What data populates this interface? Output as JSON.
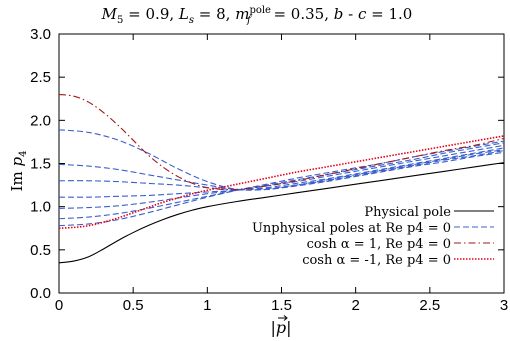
{
  "chart_data": {
    "type": "line",
    "title": "M5 = 0.9, Ls = 8, mfpole = 0.35, b - c = 1.0",
    "title_parts": {
      "m5": "M",
      "m5_sub": "5",
      "m5_val": " = 0.9, ",
      "ls": "L",
      "ls_sub": "s",
      "ls_val": " = 8, ",
      "mf": "m",
      "mf_sup": "pole",
      "mf_sub": "f",
      "mf_val": " = 0.35, ",
      "b": "b",
      "dash": " - ",
      "c": "c",
      "bc_val": " = 1.0"
    },
    "xlabel": "|p|",
    "ylabel": "Im p4",
    "ylabel_parts": {
      "im": "Im ",
      "p": "p",
      "sub": "4"
    },
    "xlim": [
      0,
      3
    ],
    "ylim": [
      0,
      3
    ],
    "x_ticks": [
      "0",
      "0.5",
      "1",
      "1.5",
      "2",
      "2.5",
      "3"
    ],
    "y_ticks": [
      "0.0",
      "0.5",
      "1.0",
      "1.5",
      "2.0",
      "2.5",
      "3.0"
    ],
    "legend_position": "bottom-right",
    "legend": [
      {
        "label": "Physical pole",
        "color": "#000000",
        "dash": "solid"
      },
      {
        "label": "Unphysical poles at Re p4 = 0",
        "color": "#3a5fcd",
        "dash": "dashed"
      },
      {
        "label": "cosh α = 1, Re p4 = 0",
        "color": "#a01818",
        "dash": "dashdot"
      },
      {
        "label": "cosh α = -1, Re p4 = 0",
        "color": "#e8001a",
        "dash": "dotted"
      }
    ],
    "series": [
      {
        "name": "Physical pole",
        "style": "solid",
        "color": "#000000",
        "x": [
          0,
          0.1,
          0.2,
          0.3,
          0.4,
          0.5,
          0.6,
          0.7,
          0.8,
          0.9,
          1.0,
          1.2,
          1.4,
          1.6,
          1.8,
          2.0,
          2.2,
          2.4,
          2.6,
          2.8,
          3.0
        ],
        "y": [
          0.35,
          0.37,
          0.42,
          0.51,
          0.61,
          0.7,
          0.78,
          0.85,
          0.91,
          0.96,
          1.0,
          1.06,
          1.11,
          1.16,
          1.21,
          1.26,
          1.31,
          1.36,
          1.41,
          1.46,
          1.51
        ]
      },
      {
        "style": "dashed",
        "color": "#3a5fcd",
        "x": [
          0,
          0.2,
          0.4,
          0.6,
          0.8,
          1.0,
          1.2,
          1.4,
          1.6,
          1.8,
          2.0,
          2.2,
          2.4,
          2.6,
          2.8,
          3.0
        ],
        "y": [
          1.89,
          1.86,
          1.77,
          1.62,
          1.44,
          1.29,
          1.2,
          1.2,
          1.25,
          1.31,
          1.37,
          1.43,
          1.49,
          1.55,
          1.61,
          1.66
        ]
      },
      {
        "style": "dashed",
        "color": "#3a5fcd",
        "x": [
          0,
          0.2,
          0.4,
          0.6,
          0.8,
          1.0,
          1.2,
          1.4,
          1.6,
          1.8,
          2.0,
          2.2,
          2.4,
          2.6,
          2.8,
          3.0
        ],
        "y": [
          1.49,
          1.47,
          1.43,
          1.37,
          1.31,
          1.25,
          1.2,
          1.2,
          1.24,
          1.29,
          1.35,
          1.41,
          1.47,
          1.52,
          1.58,
          1.63
        ]
      },
      {
        "style": "dashed",
        "color": "#3a5fcd",
        "x": [
          0,
          0.2,
          0.4,
          0.6,
          0.8,
          1.0,
          1.2,
          1.4,
          1.6,
          1.8,
          2.0,
          2.2,
          2.4,
          2.6,
          2.8,
          3.0
        ],
        "y": [
          1.3,
          1.3,
          1.29,
          1.27,
          1.25,
          1.22,
          1.2,
          1.21,
          1.25,
          1.3,
          1.36,
          1.42,
          1.48,
          1.54,
          1.59,
          1.65
        ]
      },
      {
        "style": "dashed",
        "color": "#3a5fcd",
        "x": [
          0,
          0.2,
          0.4,
          0.6,
          0.8,
          1.0,
          1.2,
          1.4,
          1.6,
          1.8,
          2.0,
          2.2,
          2.4,
          2.6,
          2.8,
          3.0
        ],
        "y": [
          1.11,
          1.11,
          1.12,
          1.13,
          1.15,
          1.17,
          1.19,
          1.22,
          1.27,
          1.32,
          1.38,
          1.44,
          1.5,
          1.56,
          1.62,
          1.68
        ]
      },
      {
        "style": "dashed",
        "color": "#3a5fcd",
        "x": [
          0,
          0.2,
          0.4,
          0.6,
          0.8,
          1.0,
          1.2,
          1.4,
          1.6,
          1.8,
          2.0,
          2.2,
          2.4,
          2.6,
          2.8,
          3.0
        ],
        "y": [
          0.98,
          0.99,
          1.01,
          1.05,
          1.1,
          1.15,
          1.19,
          1.24,
          1.29,
          1.35,
          1.41,
          1.47,
          1.53,
          1.59,
          1.65,
          1.71
        ]
      },
      {
        "style": "dashed",
        "color": "#3a5fcd",
        "x": [
          0,
          0.2,
          0.4,
          0.6,
          0.8,
          1.0,
          1.2,
          1.4,
          1.6,
          1.8,
          2.0,
          2.2,
          2.4,
          2.6,
          2.8,
          3.0
        ],
        "y": [
          0.86,
          0.88,
          0.92,
          0.98,
          1.05,
          1.12,
          1.19,
          1.25,
          1.31,
          1.37,
          1.43,
          1.49,
          1.55,
          1.62,
          1.68,
          1.74
        ]
      },
      {
        "style": "dashed",
        "color": "#3a5fcd",
        "x": [
          0,
          0.2,
          0.4,
          0.6,
          0.8,
          1.0,
          1.2,
          1.4,
          1.6,
          1.8,
          2.0,
          2.2,
          2.4,
          2.6,
          2.8,
          3.0
        ],
        "y": [
          0.78,
          0.8,
          0.85,
          0.93,
          1.02,
          1.11,
          1.19,
          1.26,
          1.33,
          1.39,
          1.45,
          1.51,
          1.58,
          1.64,
          1.7,
          1.76
        ]
      },
      {
        "name": "cosh α = 1, Re p4 = 0",
        "style": "dashdot",
        "color": "#a01818",
        "x": [
          0,
          0.1,
          0.2,
          0.3,
          0.4,
          0.5,
          0.6,
          0.7,
          0.8,
          0.9,
          1.0,
          1.1,
          1.2,
          1.4,
          1.6,
          1.8,
          2.0,
          2.2,
          2.4,
          2.6,
          2.8,
          3.0
        ],
        "y": [
          2.3,
          2.28,
          2.21,
          2.09,
          1.94,
          1.77,
          1.6,
          1.46,
          1.35,
          1.27,
          1.22,
          1.2,
          1.2,
          1.24,
          1.3,
          1.37,
          1.44,
          1.51,
          1.58,
          1.65,
          1.71,
          1.79
        ]
      },
      {
        "name": "cosh α = -1, Re p4 = 0",
        "style": "dotted",
        "color": "#e8001a",
        "x": [
          0,
          0.1,
          0.2,
          0.3,
          0.4,
          0.5,
          0.6,
          0.7,
          0.8,
          0.9,
          1.0,
          1.2,
          1.4,
          1.6,
          1.8,
          2.0,
          2.2,
          2.4,
          2.6,
          2.8,
          3.0
        ],
        "y": [
          0.75,
          0.76,
          0.78,
          0.82,
          0.87,
          0.93,
          0.99,
          1.05,
          1.1,
          1.15,
          1.19,
          1.26,
          1.33,
          1.4,
          1.46,
          1.52,
          1.58,
          1.64,
          1.7,
          1.76,
          1.82
        ]
      }
    ]
  }
}
